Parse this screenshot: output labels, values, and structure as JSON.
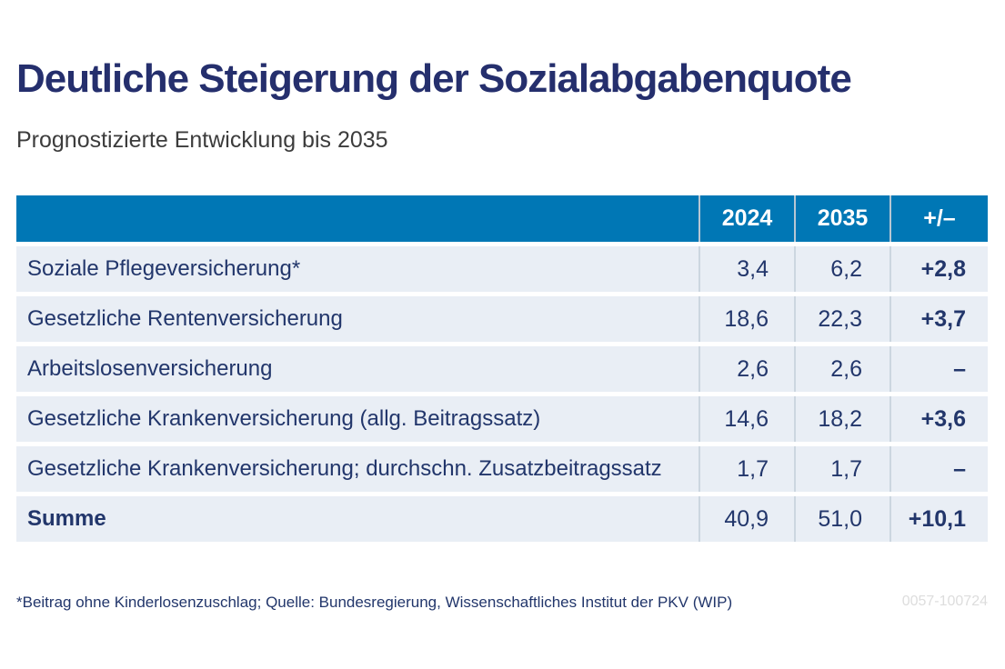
{
  "page": {
    "title": "Deutliche Steigerung der Sozialabgabenquote",
    "subtitle": "Prognostizierte Entwicklung bis 2035",
    "footnote": "*Beitrag ohne Kinderlosenzuschlag; Quelle: Bundesregierung, Wissenschaftliches Institut der PKV (WIP)",
    "figure_code": "0057-100724"
  },
  "colors": {
    "title_navy": "#252f6d",
    "header_blue": "#0077b5",
    "row_background": "#e9eef5",
    "table_text_navy": "#22366b",
    "figure_code_gray": "#dddddd"
  },
  "chart_data": {
    "type": "table",
    "title": "Deutliche Steigerung der Sozialabgabenquote",
    "subtitle": "Prognostizierte Entwicklung bis 2035",
    "columns": [
      "",
      "2024",
      "2035",
      "+/–"
    ],
    "header": {
      "col_label": "",
      "col_2024": "2024",
      "col_2035": "2035",
      "col_delta": "+/–"
    },
    "rows": [
      {
        "label": "Soziale Pflegeversicherung*",
        "y2024": "3,4",
        "y2035": "6,2",
        "delta": "+2,8"
      },
      {
        "label": "Gesetzliche Rentenversicherung",
        "y2024": "18,6",
        "y2035": "22,3",
        "delta": "+3,7"
      },
      {
        "label": "Arbeitslosenversicherung",
        "y2024": "2,6",
        "y2035": "2,6",
        "delta": "–"
      },
      {
        "label": "Gesetzliche Krankenversicherung (allg. Beitragssatz)",
        "y2024": "14,6",
        "y2035": "18,2",
        "delta": "+3,6"
      },
      {
        "label": "Gesetzliche Krankenversicherung; durchschn. Zusatzbeitragssatz",
        "y2024": "1,7",
        "y2035": "1,7",
        "delta": "–"
      },
      {
        "label": "Summe",
        "y2024": "40,9",
        "y2035": "51,0",
        "delta": "+10,1"
      }
    ],
    "footnote": "*Beitrag ohne Kinderlosenzuschlag; Quelle: Bundesregierung, Wissenschaftliches Institut der PKV (WIP)",
    "figure_code": "0057-100724",
    "layout": {
      "values_unit": "percent contribution rate",
      "delta_column_bold": true,
      "grid": "white gaps between rows, light separators between value columns"
    }
  }
}
